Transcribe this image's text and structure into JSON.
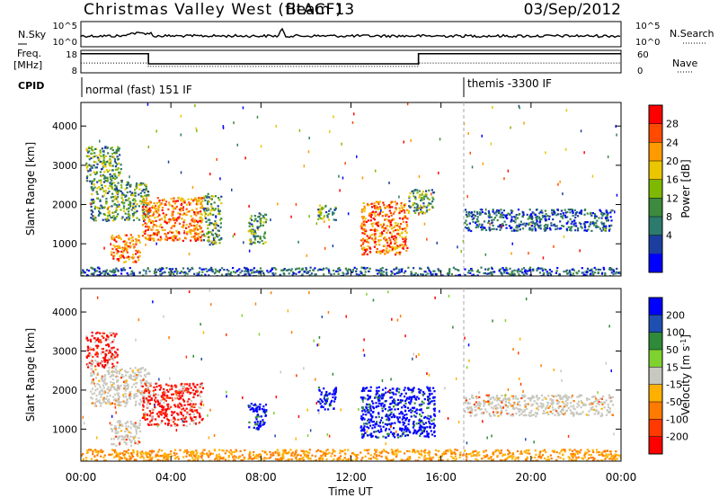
{
  "header": {
    "title": "Christmas Valley West (fitACF)",
    "beam": "Beam 13",
    "date": "03/Sep/2012"
  },
  "chart_data": [
    {
      "type": "line",
      "name": "noise_panel",
      "left_label": "N.Sky",
      "right_label": "N.Search",
      "left_ticks": [
        "10^5",
        "10^0"
      ],
      "right_ticks": [
        "10^5",
        "10^0"
      ]
    },
    {
      "type": "line",
      "name": "freq_panel",
      "left_label_lines": [
        "Freq.",
        "[MHz]"
      ],
      "right_label": "Nave",
      "left_ticks": [
        "18",
        "8"
      ],
      "right_ticks": [
        "60",
        "0"
      ],
      "freq_steps": [
        {
          "x": [
            0.0,
            3.0
          ],
          "y": 16.5
        },
        {
          "x": [
            3.0,
            15.0
          ],
          "y": 12.0
        },
        {
          "x": [
            15.0,
            24.0
          ],
          "y": 16.5
        }
      ],
      "nave_steps": [
        {
          "x": [
            0.0,
            3.0
          ],
          "y": 26
        },
        {
          "x": [
            3.0,
            15.0
          ],
          "y": 17
        },
        {
          "x": [
            15.0,
            24.0
          ],
          "y": 26
        }
      ]
    },
    {
      "type": "table",
      "name": "cpid_strip",
      "label": "CPID",
      "entries": [
        {
          "start": 0.0,
          "text": "normal (fast) 151 IF"
        },
        {
          "start": 17.0,
          "text": "themis -3300 IF"
        }
      ]
    },
    {
      "type": "heatmap",
      "name": "power",
      "ylabel": "Slant Range [km]",
      "yticks": [
        1000,
        2000,
        3000,
        4000
      ],
      "ylim": [
        180,
        4600
      ],
      "xlim": [
        0,
        24
      ],
      "colorbar": {
        "title": "Power [dB]",
        "ticks": [
          "28",
          "24",
          "20",
          "16",
          "12",
          "8",
          "4"
        ],
        "colors": [
          "#ff0000",
          "#ff4a00",
          "#ff9a00",
          "#e9c600",
          "#7fb800",
          "#3e8a3e",
          "#2d7a6e",
          "#1c3f9f",
          "#0000ff"
        ]
      },
      "regions": [
        {
          "x": [
            0.2,
            1.8
          ],
          "y": [
            2600,
            3500
          ],
          "level": "mid"
        },
        {
          "x": [
            0.4,
            3.0
          ],
          "y": [
            1600,
            2600
          ],
          "level": "mid"
        },
        {
          "x": [
            1.3,
            2.6
          ],
          "y": [
            550,
            1250
          ],
          "level": "high"
        },
        {
          "x": [
            2.7,
            5.4
          ],
          "y": [
            1100,
            2200
          ],
          "level": "high"
        },
        {
          "x": [
            5.4,
            6.2
          ],
          "y": [
            1000,
            2300
          ],
          "level": "mid"
        },
        {
          "x": [
            7.4,
            8.2
          ],
          "y": [
            1000,
            1800
          ],
          "level": "mid"
        },
        {
          "x": [
            10.5,
            11.3
          ],
          "y": [
            1600,
            2000
          ],
          "level": "mid"
        },
        {
          "x": [
            12.4,
            14.5
          ],
          "y": [
            750,
            2100
          ],
          "level": "high"
        },
        {
          "x": [
            14.5,
            15.7
          ],
          "y": [
            1800,
            2400
          ],
          "level": "mid"
        },
        {
          "x": [
            17.0,
            23.6
          ],
          "y": [
            1350,
            1900
          ],
          "level": "low"
        },
        {
          "x": [
            0.0,
            24.0
          ],
          "y": [
            200,
            420
          ],
          "level": "low"
        }
      ]
    },
    {
      "type": "heatmap",
      "name": "velocity",
      "ylabel": "Slant Range [km]",
      "yticks": [
        1000,
        2000,
        3000,
        4000
      ],
      "ylim": [
        180,
        4600
      ],
      "xlim": [
        0,
        24
      ],
      "xticks": [
        "00:00",
        "04:00",
        "08:00",
        "12:00",
        "16:00",
        "20:00",
        "00:00"
      ],
      "xlabel": "Time UT",
      "colorbar": {
        "title_parts": [
          "Velocity [m s",
          "-1",
          "]"
        ],
        "ticks": [
          "200",
          "100",
          "50",
          "15",
          "-15",
          "-50",
          "-100",
          "-200"
        ],
        "colors": [
          "#0000ff",
          "#1f4fb0",
          "#2f8a3a",
          "#7fd12f",
          "#c8c8c0",
          "#ffb000",
          "#ff7a00",
          "#ff3a00",
          "#ff0000"
        ]
      },
      "regions": [
        {
          "x": [
            0.2,
            1.6
          ],
          "y": [
            2600,
            3500
          ],
          "level": "red"
        },
        {
          "x": [
            0.4,
            3.0
          ],
          "y": [
            1600,
            2600
          ],
          "level": "gray"
        },
        {
          "x": [
            1.3,
            2.6
          ],
          "y": [
            600,
            1250
          ],
          "level": "gray"
        },
        {
          "x": [
            2.7,
            5.4
          ],
          "y": [
            1100,
            2200
          ],
          "level": "red"
        },
        {
          "x": [
            7.4,
            8.2
          ],
          "y": [
            1000,
            1700
          ],
          "level": "blue"
        },
        {
          "x": [
            10.5,
            11.3
          ],
          "y": [
            1500,
            2100
          ],
          "level": "blue"
        },
        {
          "x": [
            12.4,
            15.7
          ],
          "y": [
            800,
            2100
          ],
          "level": "blue"
        },
        {
          "x": [
            17.0,
            23.6
          ],
          "y": [
            1350,
            1900
          ],
          "level": "gray"
        },
        {
          "x": [
            0.0,
            24.0
          ],
          "y": [
            200,
            500
          ],
          "level": "orange"
        }
      ]
    }
  ]
}
